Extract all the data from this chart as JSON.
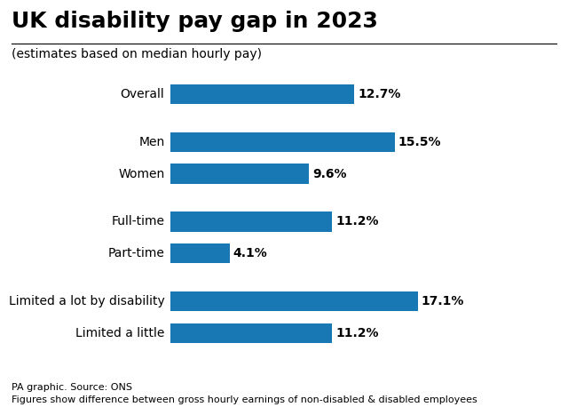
{
  "title": "UK disability pay gap in 2023",
  "subtitle": "(estimates based on median hourly pay)",
  "categories": [
    "Overall",
    "Men",
    "Women",
    "Full-time",
    "Part-time",
    "Limited a lot by disability",
    "Limited a little"
  ],
  "values": [
    12.7,
    15.5,
    9.6,
    11.2,
    4.1,
    17.1,
    11.2
  ],
  "bar_color": "#1878b4",
  "label_format": [
    "12.7%",
    "15.5%",
    "9.6%",
    "11.2%",
    "4.1%",
    "17.1%",
    "11.2%"
  ],
  "xlim": [
    0,
    22
  ],
  "footer_line1": "PA graphic. Source: ONS",
  "footer_line2": "Figures show difference between gross hourly earnings of non-disabled & disabled employees",
  "background_color": "#ffffff",
  "title_fontsize": 18,
  "subtitle_fontsize": 10,
  "label_fontsize": 10,
  "category_fontsize": 10,
  "footer_fontsize": 8,
  "bar_height": 0.5,
  "y_positions": [
    6.6,
    5.4,
    4.6,
    3.4,
    2.6,
    1.4,
    0.6
  ]
}
